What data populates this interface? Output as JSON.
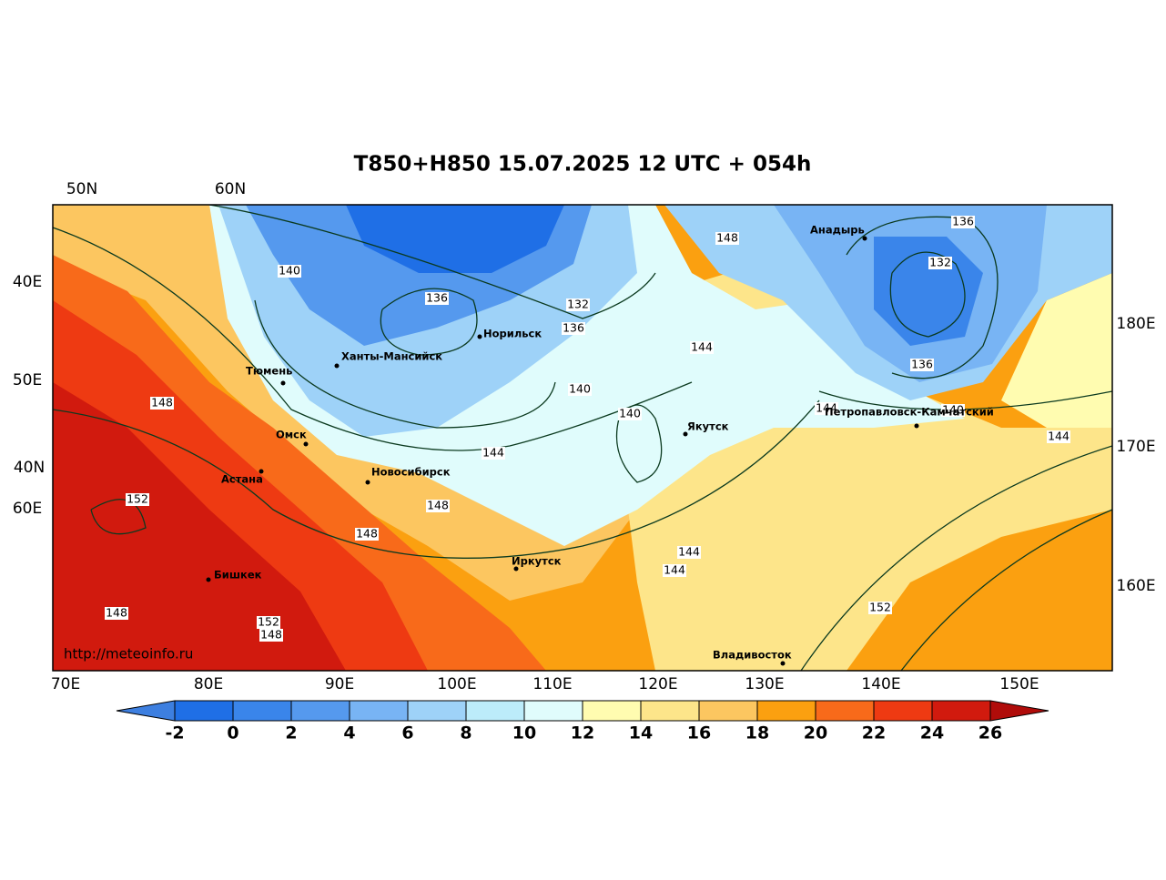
{
  "title": "T850+H850 15.07.2025 12 UTC + 054h",
  "edge_labels": [
    "50N",
    "60N",
    "40E",
    "50E",
    "40N",
    "60E",
    "180E",
    "170E",
    "160E"
  ],
  "lon_labels": [
    "70E",
    "80E",
    "90E",
    "100E",
    "110E",
    "120E",
    "130E",
    "140E",
    "150E"
  ],
  "cities": [
    "Анадырь",
    "Норильск",
    "Ханты-Мансийск",
    "Тюмень",
    "Якутск",
    "Петропавловск-Камчатский",
    "Омск",
    "Астана",
    "Новосибирск",
    "Иркутск",
    "Бишкек",
    "Владивосток"
  ],
  "contour_labels": [
    140,
    136,
    132,
    136,
    148,
    136,
    132,
    144,
    140,
    140,
    136,
    144,
    140,
    144,
    148,
    144,
    148,
    152,
    148,
    144,
    144,
    152,
    148,
    152,
    148
  ],
  "watermark": "http://meteoinfo.ru",
  "colorbar": {
    "ticks": [
      -2,
      0,
      2,
      4,
      6,
      8,
      10,
      12,
      14,
      16,
      18,
      20,
      22,
      24,
      26
    ],
    "colors": [
      "#3d7fe0",
      "#1f6fe6",
      "#3a85ea",
      "#5599ee",
      "#78b4f4",
      "#9ed2f8",
      "#bcecfa",
      "#e0fcfc",
      "#fffcb0",
      "#fde58a",
      "#fcc660",
      "#fba010",
      "#f86a1a",
      "#ee3a12",
      "#d11a0e",
      "#b00c0a"
    ]
  }
}
